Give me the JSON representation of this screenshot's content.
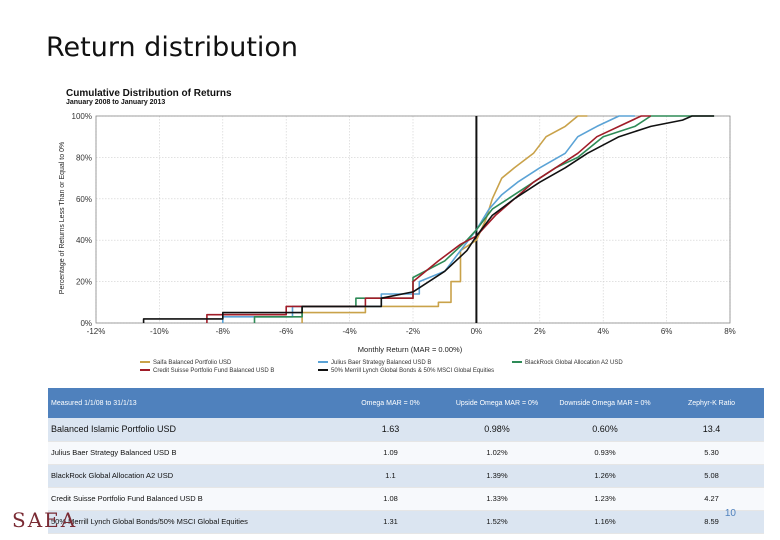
{
  "slide": {
    "title": "Return distribution",
    "page_number": "10",
    "logo": "SAEA"
  },
  "chart_data": {
    "type": "line",
    "title": "Cumulative Distribution of Returns",
    "subtitle": "January 2008 to January 2013",
    "xlabel": "Monthly Return (MAR = 0.00%)",
    "ylabel": "Percentage of Returns Less Than or Equal to 0%",
    "xlim": [
      -12,
      8
    ],
    "ylim": [
      0,
      100
    ],
    "x_ticks": [
      -12,
      -10,
      -8,
      -6,
      -4,
      -2,
      0,
      2,
      4,
      6,
      8
    ],
    "x_tick_labels": [
      "-12%",
      "-10%",
      "-8%",
      "-6%",
      "-4%",
      "-2%",
      "0%",
      "2%",
      "4%",
      "6%",
      "8%"
    ],
    "y_ticks": [
      0,
      20,
      40,
      60,
      80,
      100
    ],
    "y_tick_labels": [
      "0%",
      "20%",
      "40%",
      "60%",
      "80%",
      "100%"
    ],
    "mar_line_x": 0,
    "legend_position": "bottom",
    "series": [
      {
        "name": "Saifa Balanced Portfolio USD",
        "color": "#c9a24a",
        "points": [
          [
            -5.5,
            0
          ],
          [
            -5.5,
            5
          ],
          [
            -3.5,
            5
          ],
          [
            -3.5,
            8
          ],
          [
            -1.2,
            8
          ],
          [
            -1.2,
            10
          ],
          [
            -0.8,
            10
          ],
          [
            -0.8,
            20
          ],
          [
            -0.5,
            20
          ],
          [
            -0.5,
            35
          ],
          [
            0,
            40
          ],
          [
            0.3,
            50
          ],
          [
            0.5,
            60
          ],
          [
            0.8,
            70
          ],
          [
            1.2,
            75
          ],
          [
            1.8,
            82
          ],
          [
            2.2,
            90
          ],
          [
            2.8,
            95
          ],
          [
            3.2,
            100
          ],
          [
            3.5,
            100
          ]
        ]
      },
      {
        "name": "Julius Baer Strategy Balanced USD B",
        "color": "#5ba3d6",
        "points": [
          [
            -8,
            0
          ],
          [
            -8,
            3
          ],
          [
            -5.8,
            3
          ],
          [
            -5.8,
            8
          ],
          [
            -3,
            8
          ],
          [
            -3,
            14
          ],
          [
            -1.8,
            14
          ],
          [
            -1.8,
            20
          ],
          [
            -1,
            25
          ],
          [
            -0.5,
            35
          ],
          [
            0,
            45
          ],
          [
            0.4,
            55
          ],
          [
            0.8,
            62
          ],
          [
            1.3,
            68
          ],
          [
            2,
            75
          ],
          [
            2.8,
            82
          ],
          [
            3.2,
            90
          ],
          [
            3.8,
            95
          ],
          [
            4.5,
            100
          ],
          [
            5,
            100
          ]
        ]
      },
      {
        "name": "BlackRock Global Allocation A2 USD",
        "color": "#2e8b57",
        "points": [
          [
            -7,
            0
          ],
          [
            -7,
            3
          ],
          [
            -5.5,
            3
          ],
          [
            -5.5,
            8
          ],
          [
            -3.8,
            8
          ],
          [
            -3.8,
            12
          ],
          [
            -2,
            12
          ],
          [
            -2,
            22
          ],
          [
            -1,
            30
          ],
          [
            -0.3,
            40
          ],
          [
            0,
            45
          ],
          [
            0.5,
            55
          ],
          [
            1,
            60
          ],
          [
            1.8,
            68
          ],
          [
            2.5,
            75
          ],
          [
            3.2,
            80
          ],
          [
            4,
            90
          ],
          [
            5,
            95
          ],
          [
            5.5,
            100
          ],
          [
            7.5,
            100
          ]
        ]
      },
      {
        "name": "Credit Suisse Portfolio Fund Balanced USD B",
        "color": "#a01c28",
        "points": [
          [
            -8.5,
            0
          ],
          [
            -8.5,
            4
          ],
          [
            -6,
            4
          ],
          [
            -6,
            8
          ],
          [
            -3.5,
            8
          ],
          [
            -3.5,
            12
          ],
          [
            -2,
            12
          ],
          [
            -2,
            20
          ],
          [
            -1.2,
            30
          ],
          [
            -0.5,
            38
          ],
          [
            0,
            42
          ],
          [
            0.6,
            52
          ],
          [
            1.2,
            60
          ],
          [
            1.8,
            68
          ],
          [
            2.5,
            75
          ],
          [
            3.2,
            82
          ],
          [
            3.8,
            90
          ],
          [
            4.5,
            95
          ],
          [
            5.2,
            100
          ],
          [
            5.5,
            100
          ]
        ]
      },
      {
        "name": "50% Merrill Lynch Global Bonds & 50% MSCI Global Equities",
        "color": "#111111",
        "points": [
          [
            -10.5,
            0
          ],
          [
            -10.5,
            2
          ],
          [
            -8,
            2
          ],
          [
            -8,
            5
          ],
          [
            -5.5,
            5
          ],
          [
            -5.5,
            8
          ],
          [
            -3,
            8
          ],
          [
            -3,
            12
          ],
          [
            -2,
            15
          ],
          [
            -1,
            25
          ],
          [
            -0.3,
            35
          ],
          [
            0,
            42
          ],
          [
            0.5,
            52
          ],
          [
            1.2,
            60
          ],
          [
            2,
            68
          ],
          [
            2.8,
            75
          ],
          [
            3.5,
            82
          ],
          [
            4.5,
            90
          ],
          [
            5.5,
            95
          ],
          [
            6.5,
            98
          ],
          [
            6.8,
            100
          ],
          [
            7.5,
            100
          ]
        ]
      }
    ]
  },
  "table": {
    "headers": {
      "label": "Measured 1/1/08 to 31/1/13",
      "omega": "Omega MAR = 0%",
      "upside": "Upside Omega MAR = 0%",
      "downside": "Downside Omega MAR = 0%",
      "zephyr": "Zephyr-K Ratio"
    },
    "rows": [
      {
        "name": "Balanced Islamic Portfolio USD",
        "omega": "1.63",
        "upside": "0.98%",
        "downside": "0.60%",
        "zephyr": "13.4"
      },
      {
        "name": "Julius Baer Strategy Balanced USD B",
        "omega": "1.09",
        "upside": "1.02%",
        "downside": "0.93%",
        "zephyr": "5.30"
      },
      {
        "name": "BlackRock Global Allocation A2 USD",
        "omega": "1.1",
        "upside": "1.39%",
        "downside": "1.26%",
        "zephyr": "5.08"
      },
      {
        "name": "Credit Suisse Portfolio Fund Balanced USD B",
        "omega": "1.08",
        "upside": "1.33%",
        "downside": "1.23%",
        "zephyr": "4.27"
      },
      {
        "name": "50% Merrill Lynch Global Bonds/50% MSCI Global Equities",
        "omega": "1.31",
        "upside": "1.52%",
        "downside": "1.16%",
        "zephyr": "8.59"
      }
    ]
  }
}
